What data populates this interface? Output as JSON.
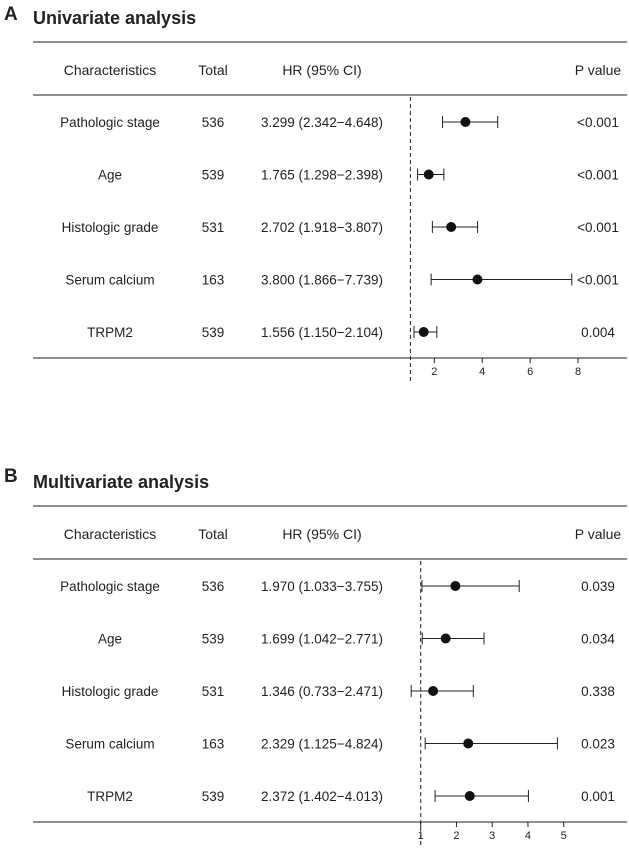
{
  "panels": [
    {
      "letter": "A",
      "title": "Univariate analysis",
      "headers": {
        "characteristics": "Characteristics",
        "total": "Total",
        "hr": "HR (95% CI)",
        "p": "P value"
      },
      "chart_data": {
        "type": "forest",
        "title": "Univariate analysis",
        "reference_line": 1,
        "xlim": [
          0.9,
          8.5
        ],
        "xticks": [
          2,
          4,
          6,
          8
        ],
        "rows": [
          {
            "label": "Pathologic stage",
            "total": "536",
            "hr_text": "3.299 (2.342−4.648)",
            "hr": 3.299,
            "lo": 2.342,
            "hi": 4.648,
            "p": "<0.001"
          },
          {
            "label": "Age",
            "total": "539",
            "hr_text": "1.765 (1.298−2.398)",
            "hr": 1.765,
            "lo": 1.298,
            "hi": 2.398,
            "p": "<0.001"
          },
          {
            "label": "Histologic grade",
            "total": "531",
            "hr_text": "2.702 (1.918−3.807)",
            "hr": 2.702,
            "lo": 1.918,
            "hi": 3.807,
            "p": "<0.001"
          },
          {
            "label": "Serum calcium",
            "total": "163",
            "hr_text": "3.800 (1.866−7.739)",
            "hr": 3.8,
            "lo": 1.866,
            "hi": 7.739,
            "p": "<0.001"
          },
          {
            "label": "TRPM2",
            "total": "539",
            "hr_text": "1.556 (1.150−2.104)",
            "hr": 1.556,
            "lo": 1.15,
            "hi": 2.104,
            "p": "0.004"
          }
        ]
      }
    },
    {
      "letter": "B",
      "title": "Multivariate analysis",
      "headers": {
        "characteristics": "Characteristics",
        "total": "Total",
        "hr": "HR (95% CI)",
        "p": "P value"
      },
      "chart_data": {
        "type": "forest",
        "title": "Multivariate analysis",
        "reference_line": 1,
        "xlim": [
          0.7,
          5.4
        ],
        "xticks": [
          1,
          2,
          3,
          4,
          5
        ],
        "rows": [
          {
            "label": "Pathologic stage",
            "total": "536",
            "hr_text": "1.970 (1.033−3.755)",
            "hr": 1.97,
            "lo": 1.033,
            "hi": 3.755,
            "p": "0.039"
          },
          {
            "label": "Age",
            "total": "539",
            "hr_text": "1.699 (1.042−2.771)",
            "hr": 1.699,
            "lo": 1.042,
            "hi": 2.771,
            "p": "0.034"
          },
          {
            "label": "Histologic grade",
            "total": "531",
            "hr_text": "1.346 (0.733−2.471)",
            "hr": 1.346,
            "lo": 0.733,
            "hi": 2.471,
            "p": "0.338"
          },
          {
            "label": "Serum calcium",
            "total": "163",
            "hr_text": "2.329 (1.125−4.824)",
            "hr": 2.329,
            "lo": 1.125,
            "hi": 4.824,
            "p": "0.023"
          },
          {
            "label": "TRPM2",
            "total": "539",
            "hr_text": "2.372 (1.402−4.013)",
            "hr": 2.372,
            "lo": 1.402,
            "hi": 4.013,
            "p": "0.001"
          }
        ]
      }
    }
  ]
}
